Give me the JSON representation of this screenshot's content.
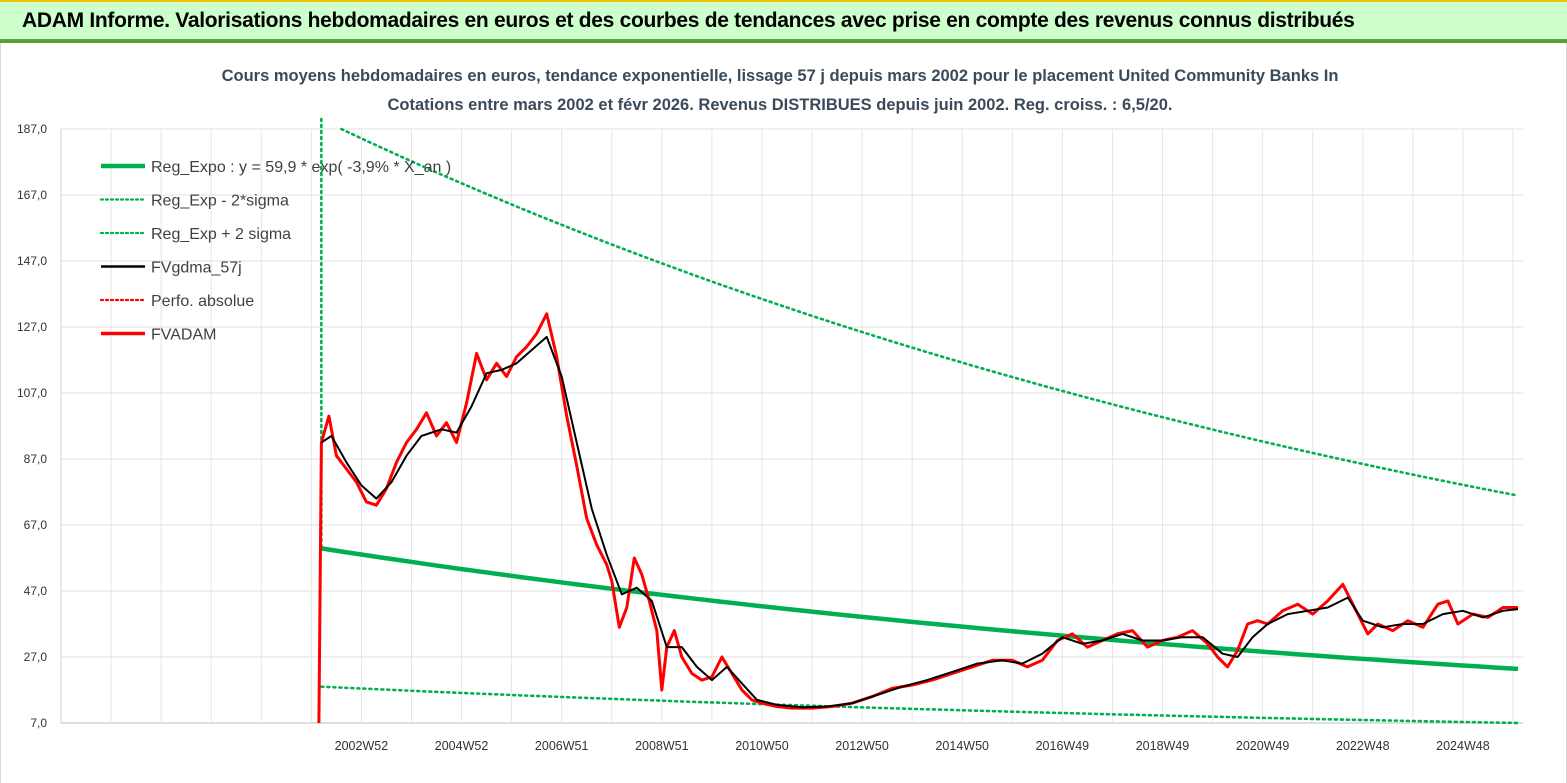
{
  "header": {
    "title": "ADAM Informe. Valorisations hebdomadaires en euros et des courbes de tendances avec prise en compte des revenus connus distribués",
    "bg_color": "#ccffcc"
  },
  "chart_data": {
    "type": "line",
    "title_lines": [
      "Cours moyens hebdomadaires en euros, tendance exponentielle, lissage 57 j depuis mars 2002 pour le placement United Community Banks In",
      "Cotations entre mars 2002 et févr 2026. Revenus DISTRIBUES depuis juin 2002. Reg. croiss. : 6,5/20."
    ],
    "xlabel": "",
    "ylabel": "",
    "ylim": [
      7,
      187
    ],
    "y_ticks": [
      "187,0",
      "167,0",
      "147,0",
      "127,0",
      "107,0",
      "87,0",
      "67,0",
      "47,0",
      "27,0",
      "7,0"
    ],
    "y_tick_values": [
      187,
      167,
      147,
      127,
      107,
      87,
      67,
      47,
      27,
      7
    ],
    "x_ticks": [
      "2002W52",
      "2004W52",
      "2006W51",
      "2008W51",
      "2010W50",
      "2012W50",
      "2014W50",
      "2016W49",
      "2018W49",
      "2020W49",
      "2022W48",
      "2024W48"
    ],
    "x_tick_years": [
      2003.0,
      2005.0,
      2007.0,
      2009.0,
      2011.0,
      2013.0,
      2015.0,
      2017.0,
      2019.0,
      2021.0,
      2023.0,
      2025.0
    ],
    "xlim": [
      1997.0,
      2026.2
    ],
    "grid": true,
    "legend_position": "top-left",
    "legend": [
      {
        "label": "Reg_Expo : y = 59,9 * exp( -3,9% * X_an )",
        "color": "#00b050",
        "style": "thick"
      },
      {
        "label": "Reg_Exp - 2*sigma",
        "color": "#00b050",
        "style": "dotted"
      },
      {
        "label": "Reg_Exp + 2 sigma",
        "color": "#00b050",
        "style": "dotted"
      },
      {
        "label": "FVgdma_57j",
        "color": "#000000",
        "style": "solid"
      },
      {
        "label": "Perfo. absolue",
        "color": "#ff0000",
        "style": "dotted"
      },
      {
        "label": "FVADAM",
        "color": "#ff0000",
        "style": "thick"
      }
    ],
    "series": [
      {
        "name": "Reg_Expo : y = 59,9 * exp( -3,9% * X_an )",
        "kind": "exp_regression",
        "x": [
          2002.2,
          2026.1
        ],
        "y": [
          59.9,
          23.4
        ]
      },
      {
        "name": "Reg_Exp - 2*sigma",
        "kind": "exp_band",
        "x": [
          2002.2,
          2026.1
        ],
        "y": [
          18.0,
          7.0
        ]
      },
      {
        "name": "Reg_Exp + 2 sigma",
        "kind": "exp_band",
        "x": [
          2002.6,
          2026.1
        ],
        "y": [
          187.0,
          75.9
        ]
      },
      {
        "name": "FVADAM",
        "kind": "price",
        "x": [
          2002.15,
          2002.2,
          2002.35,
          2002.5,
          2002.7,
          2002.9,
          2003.1,
          2003.3,
          2003.5,
          2003.7,
          2003.9,
          2004.1,
          2004.3,
          2004.5,
          2004.7,
          2004.9,
          2005.1,
          2005.3,
          2005.5,
          2005.7,
          2005.9,
          2006.1,
          2006.3,
          2006.5,
          2006.7,
          2006.9,
          2007.1,
          2007.3,
          2007.5,
          2007.7,
          2007.9,
          2008.0,
          2008.15,
          2008.3,
          2008.45,
          2008.6,
          2008.75,
          2008.9,
          2009.0,
          2009.1,
          2009.25,
          2009.4,
          2009.6,
          2009.8,
          2010.0,
          2010.2,
          2010.4,
          2010.6,
          2010.8,
          2011.0,
          2011.3,
          2011.6,
          2012.0,
          2012.4,
          2012.8,
          2013.2,
          2013.6,
          2014.0,
          2014.4,
          2014.8,
          2015.2,
          2015.6,
          2016.0,
          2016.3,
          2016.6,
          2016.9,
          2017.2,
          2017.5,
          2017.8,
          2018.1,
          2018.4,
          2018.7,
          2019.0,
          2019.3,
          2019.6,
          2019.9,
          2020.1,
          2020.3,
          2020.5,
          2020.7,
          2020.9,
          2021.1,
          2021.4,
          2021.7,
          2022.0,
          2022.3,
          2022.6,
          2022.9,
          2023.1,
          2023.3,
          2023.6,
          2023.9,
          2024.2,
          2024.5,
          2024.7,
          2024.9,
          2025.2,
          2025.5,
          2025.8,
          2026.1
        ],
        "y": [
          7.0,
          92.0,
          100.0,
          88.0,
          84.0,
          80.0,
          74.0,
          73.0,
          78.0,
          86.0,
          92.0,
          96.0,
          101.0,
          94.0,
          98.0,
          92.0,
          104.0,
          119.0,
          111.0,
          116.0,
          112.0,
          118.0,
          121.0,
          125.0,
          131.0,
          118.0,
          100.0,
          85.0,
          69.0,
          61.0,
          55.0,
          50.0,
          36.0,
          42.0,
          57.0,
          52.0,
          44.0,
          35.0,
          17.0,
          30.0,
          35.0,
          27.0,
          22.0,
          20.0,
          21.0,
          27.0,
          22.0,
          17.0,
          14.0,
          13.0,
          12.0,
          11.5,
          11.5,
          12.0,
          13.0,
          15.0,
          17.5,
          18.5,
          20.0,
          22.0,
          24.0,
          26.0,
          26.0,
          24.0,
          26.0,
          32.0,
          34.0,
          30.0,
          32.0,
          34.0,
          35.0,
          30.0,
          32.0,
          33.0,
          35.0,
          31.0,
          27.0,
          24.0,
          29.0,
          37.0,
          38.0,
          37.0,
          41.0,
          43.0,
          40.0,
          44.0,
          49.0,
          40.0,
          34.0,
          37.0,
          35.0,
          38.0,
          36.0,
          43.0,
          44.0,
          37.0,
          40.0,
          39.0,
          42.0,
          42.0
        ]
      },
      {
        "name": "FVgdma_57j",
        "kind": "moving_average",
        "x": [
          2002.2,
          2002.4,
          2002.7,
          2003.0,
          2003.3,
          2003.6,
          2003.9,
          2004.2,
          2004.6,
          2004.9,
          2005.2,
          2005.5,
          2005.8,
          2006.1,
          2006.4,
          2006.7,
          2007.0,
          2007.3,
          2007.6,
          2007.9,
          2008.2,
          2008.5,
          2008.8,
          2009.1,
          2009.4,
          2009.7,
          2010.0,
          2010.3,
          2010.6,
          2010.9,
          2011.3,
          2011.8,
          2012.3,
          2012.8,
          2013.3,
          2013.8,
          2014.3,
          2014.8,
          2015.3,
          2015.8,
          2016.2,
          2016.6,
          2017.0,
          2017.4,
          2017.8,
          2018.2,
          2018.6,
          2019.0,
          2019.4,
          2019.8,
          2020.2,
          2020.5,
          2020.8,
          2021.1,
          2021.5,
          2021.9,
          2022.3,
          2022.7,
          2023.0,
          2023.4,
          2023.8,
          2024.2,
          2024.6,
          2025.0,
          2025.4,
          2025.8,
          2026.1
        ],
        "y": [
          92.0,
          94.0,
          86.0,
          79.0,
          75.0,
          80.0,
          88.0,
          94.0,
          96.0,
          95.0,
          103.0,
          113.0,
          114.0,
          116.0,
          120.0,
          124.0,
          112.0,
          92.0,
          72.0,
          58.0,
          46.0,
          48.0,
          44.0,
          30.0,
          30.0,
          24.0,
          20.0,
          24.0,
          19.0,
          14.0,
          12.5,
          11.8,
          12.0,
          13.0,
          15.5,
          18.0,
          20.0,
          22.5,
          25.0,
          26.0,
          25.0,
          28.0,
          33.0,
          31.0,
          32.0,
          34.0,
          32.0,
          32.0,
          33.0,
          33.0,
          28.0,
          27.0,
          33.0,
          37.0,
          40.0,
          41.0,
          42.0,
          45.0,
          38.0,
          36.0,
          37.0,
          37.0,
          40.0,
          41.0,
          39.0,
          41.0,
          41.5
        ]
      }
    ]
  }
}
